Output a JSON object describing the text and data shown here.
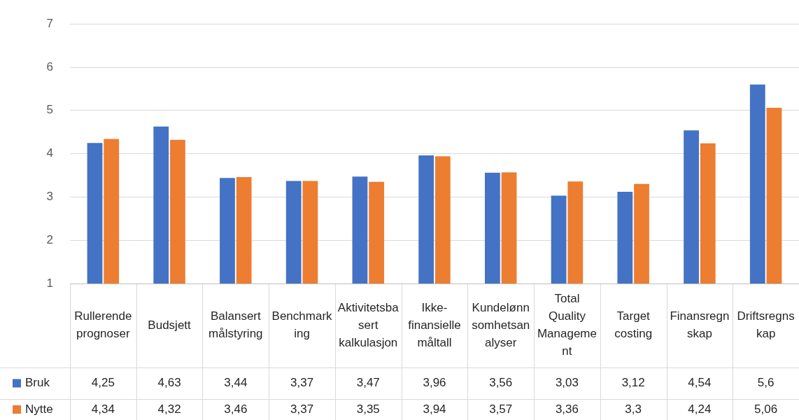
{
  "chart_data": {
    "type": "bar",
    "categories": [
      "Rullerende prognoser",
      "Budsjett",
      "Balansert målstyring",
      "Benchmarking",
      "Aktivitetsbasert kalkulasjon",
      "Ikke-finansielle måltall",
      "Kundelønnsomhetsanalyser",
      "Total Quality Management",
      "Target costing",
      "Finansregnskap",
      "Driftsregnskap"
    ],
    "series": [
      {
        "name": "Bruk",
        "color": "#4472c4",
        "values": [
          4.25,
          4.63,
          3.44,
          3.37,
          3.47,
          3.96,
          3.56,
          3.03,
          3.12,
          4.54,
          5.6
        ],
        "value_labels": [
          "4,25",
          "4,63",
          "3,44",
          "3,37",
          "3,47",
          "3,96",
          "3,56",
          "3,03",
          "3,12",
          "4,54",
          "5,6"
        ]
      },
      {
        "name": "Nytte",
        "color": "#ed7d31",
        "values": [
          4.34,
          4.32,
          3.46,
          3.37,
          3.35,
          3.94,
          3.57,
          3.36,
          3.3,
          4.24,
          5.06
        ],
        "value_labels": [
          "4,34",
          "4,32",
          "3,46",
          "3,37",
          "3,35",
          "3,94",
          "3,57",
          "3,36",
          "3,3",
          "4,24",
          "5,06"
        ]
      }
    ],
    "ylim": [
      1,
      7
    ],
    "yticks": [
      1,
      2,
      3,
      4,
      5,
      6,
      7
    ],
    "grid": "y",
    "legend": "bottom left"
  }
}
